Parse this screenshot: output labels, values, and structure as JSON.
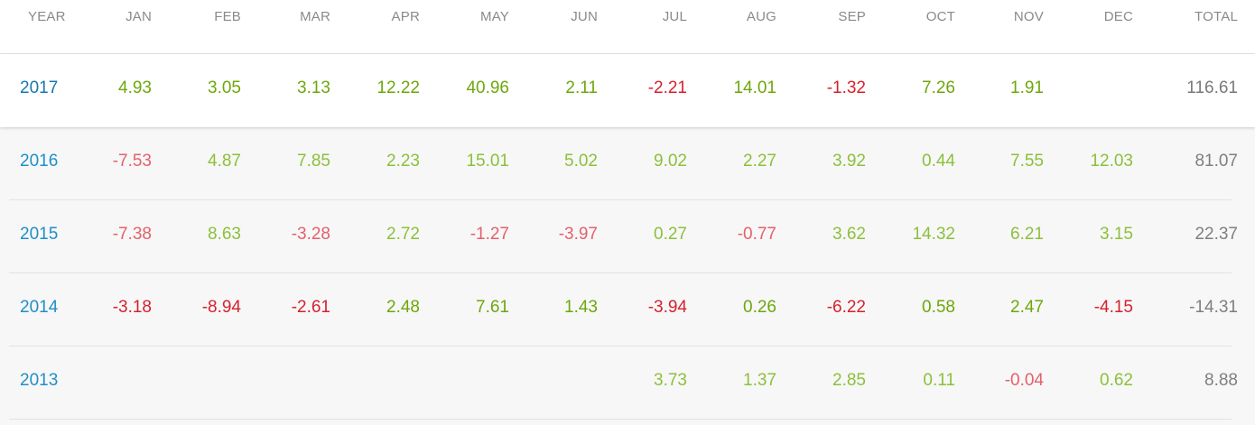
{
  "header": {
    "year": "YEAR",
    "months": [
      "JAN",
      "FEB",
      "MAR",
      "APR",
      "MAY",
      "JUN",
      "JUL",
      "AUG",
      "SEP",
      "OCT",
      "NOV",
      "DEC"
    ],
    "total": "TOTAL"
  },
  "rows": [
    {
      "year": "2017",
      "months": [
        "4.93",
        "3.05",
        "3.13",
        "12.22",
        "40.96",
        "2.11",
        "-2.21",
        "14.01",
        "-1.32",
        "7.26",
        "1.91",
        ""
      ],
      "total": "116.61"
    },
    {
      "year": "2016",
      "months": [
        "-7.53",
        "4.87",
        "7.85",
        "2.23",
        "15.01",
        "5.02",
        "9.02",
        "2.27",
        "3.92",
        "0.44",
        "7.55",
        "12.03"
      ],
      "total": "81.07"
    },
    {
      "year": "2015",
      "months": [
        "-7.38",
        "8.63",
        "-3.28",
        "2.72",
        "-1.27",
        "-3.97",
        "0.27",
        "-0.77",
        "3.62",
        "14.32",
        "6.21",
        "3.15"
      ],
      "total": "22.37"
    },
    {
      "year": "2014",
      "months": [
        "-3.18",
        "-8.94",
        "-2.61",
        "2.48",
        "7.61",
        "1.43",
        "-3.94",
        "0.26",
        "-6.22",
        "0.58",
        "2.47",
        "-4.15"
      ],
      "total": "-14.31"
    },
    {
      "year": "2013",
      "months": [
        "",
        "",
        "",
        "",
        "",
        "",
        "3.73",
        "1.37",
        "2.85",
        "0.11",
        "-0.04",
        "0.62"
      ],
      "total": "8.88"
    }
  ],
  "colors": {
    "year_link": "#1e8fc8",
    "positive": "#6ea70c",
    "negative": "#d6212f",
    "total": "#7f7f7f",
    "header": "#8a8a8a"
  }
}
